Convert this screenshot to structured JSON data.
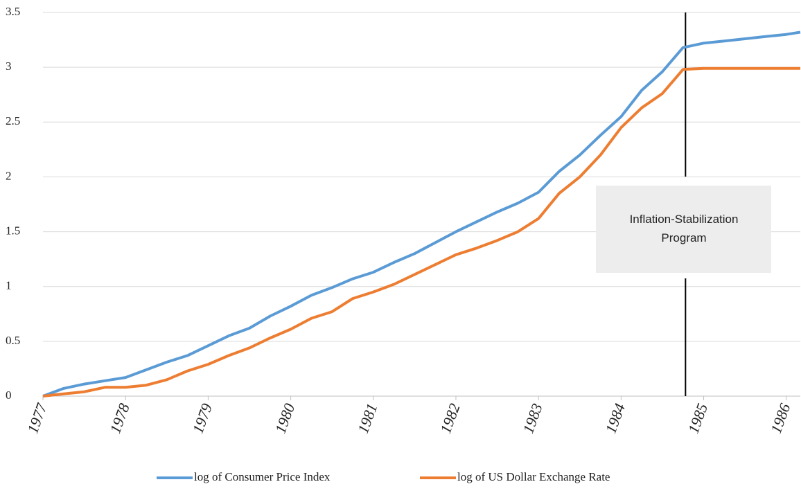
{
  "chart_data": {
    "type": "line",
    "x": [
      1977,
      1977.25,
      1977.5,
      1977.75,
      1978,
      1978.25,
      1978.5,
      1978.75,
      1979,
      1979.25,
      1979.5,
      1979.75,
      1980,
      1980.25,
      1980.5,
      1980.75,
      1981,
      1981.25,
      1981.5,
      1981.75,
      1982,
      1982.25,
      1982.5,
      1982.75,
      1983,
      1983.25,
      1983.5,
      1983.75,
      1984,
      1984.25,
      1984.5,
      1984.75,
      1985,
      1985.25,
      1985.5,
      1985.75,
      1986,
      1986.17
    ],
    "series": [
      {
        "name": "log of Consumer Price Index",
        "color": "#5b9bd5",
        "values": [
          0,
          0.07,
          0.11,
          0.14,
          0.17,
          0.24,
          0.31,
          0.37,
          0.46,
          0.55,
          0.62,
          0.73,
          0.82,
          0.92,
          0.99,
          1.07,
          1.13,
          1.22,
          1.3,
          1.4,
          1.5,
          1.59,
          1.68,
          1.76,
          1.86,
          2.05,
          2.2,
          2.38,
          2.55,
          2.79,
          2.96,
          3.18,
          3.22,
          3.24,
          3.26,
          3.28,
          3.3,
          3.32
        ]
      },
      {
        "name": "log of US Dollar Exchange Rate",
        "color": "#ed7d31",
        "values": [
          0,
          0.02,
          0.04,
          0.08,
          0.08,
          0.1,
          0.15,
          0.23,
          0.29,
          0.37,
          0.44,
          0.53,
          0.61,
          0.71,
          0.77,
          0.89,
          0.95,
          1.02,
          1.11,
          1.2,
          1.29,
          1.35,
          1.42,
          1.5,
          1.62,
          1.85,
          2.0,
          2.2,
          2.45,
          2.63,
          2.76,
          2.98,
          2.99,
          2.99,
          2.99,
          2.99,
          2.99,
          2.99
        ]
      }
    ],
    "xlim": [
      1977,
      1986.17
    ],
    "xticks": [
      1977,
      1978,
      1979,
      1980,
      1981,
      1982,
      1983,
      1984,
      1985,
      1986
    ],
    "ylim": [
      0,
      3.5
    ],
    "yticks": [
      0,
      0.5,
      1,
      1.5,
      2,
      2.5,
      3,
      3.5
    ],
    "grid": true,
    "legend": "bottom",
    "annotations": [
      {
        "text": "Inflation-Stabilization Program",
        "x": 1984.78
      }
    ]
  }
}
